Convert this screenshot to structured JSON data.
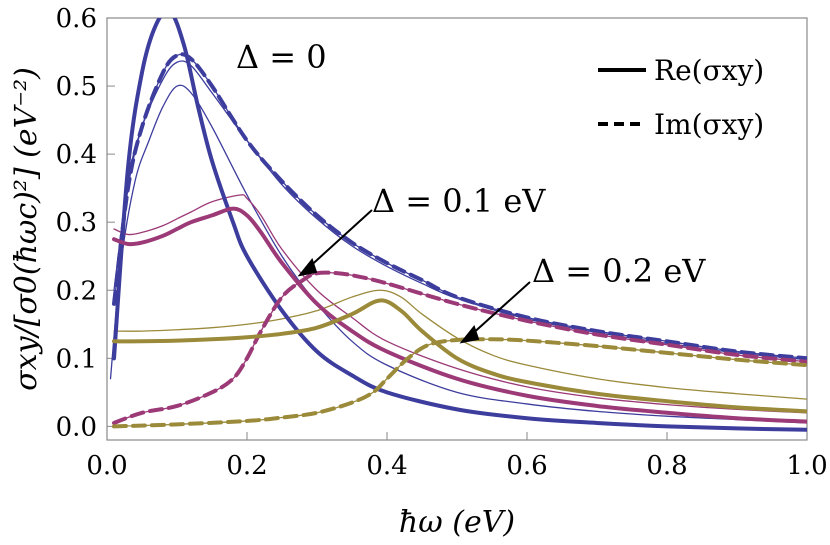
{
  "chart_data": {
    "type": "line",
    "xlabel": "ħω (eV)",
    "ylabel": "σxy/[σ0(ħωc)²] (eV⁻²)",
    "xlim": [
      0,
      1.0
    ],
    "ylim": [
      -0.02,
      0.6
    ],
    "x_ticks": [
      "0.0",
      "0.2",
      "0.4",
      "0.6",
      "0.8",
      "1.0"
    ],
    "y_ticks": [
      "0.0",
      "0.1",
      "0.2",
      "0.3",
      "0.4",
      "0.5",
      "0.6"
    ],
    "legend": [
      {
        "label": "Re(σxy)",
        "style": "solid"
      },
      {
        "label": "Im(σxy)",
        "style": "dashed"
      }
    ],
    "annotations": [
      {
        "text": "Δ = 0"
      },
      {
        "text": "Δ = 0.1 eV"
      },
      {
        "text": "Δ = 0.2 eV"
      }
    ],
    "colors": {
      "delta0": "#3d3d9e",
      "delta01": "#9c3a78",
      "delta02": "#9a8a3a"
    },
    "series": [
      {
        "group": "delta0",
        "kind": "re",
        "width": "thick",
        "x": [
          0.01,
          0.03,
          0.05,
          0.07,
          0.09,
          0.11,
          0.13,
          0.15,
          0.18,
          0.2,
          0.25,
          0.3,
          0.35,
          0.4,
          0.5,
          0.6,
          0.7,
          0.8,
          0.9,
          1.0
        ],
        "y": [
          0.1,
          0.38,
          0.52,
          0.59,
          0.61,
          0.56,
          0.47,
          0.39,
          0.3,
          0.25,
          0.17,
          0.11,
          0.075,
          0.05,
          0.025,
          0.012,
          0.005,
          0.0,
          -0.003,
          -0.005
        ]
      },
      {
        "group": "delta0",
        "kind": "re",
        "width": "thin",
        "x": [
          0.005,
          0.02,
          0.04,
          0.06,
          0.08,
          0.1,
          0.12,
          0.15,
          0.2,
          0.25,
          0.3,
          0.35,
          0.4,
          0.5,
          0.6,
          0.7,
          0.8,
          0.9,
          1.0
        ],
        "y": [
          0.07,
          0.24,
          0.36,
          0.42,
          0.47,
          0.5,
          0.49,
          0.44,
          0.34,
          0.25,
          0.18,
          0.125,
          0.09,
          0.05,
          0.033,
          0.022,
          0.015,
          0.01,
          0.005
        ]
      },
      {
        "group": "delta0",
        "kind": "im",
        "width": "thick",
        "x": [
          0.01,
          0.03,
          0.05,
          0.08,
          0.1,
          0.12,
          0.15,
          0.2,
          0.25,
          0.3,
          0.35,
          0.4,
          0.45,
          0.5,
          0.6,
          0.7,
          0.8,
          0.9,
          1.0
        ],
        "y": [
          0.18,
          0.35,
          0.44,
          0.52,
          0.545,
          0.54,
          0.5,
          0.42,
          0.36,
          0.31,
          0.27,
          0.24,
          0.215,
          0.19,
          0.16,
          0.14,
          0.125,
          0.11,
          0.1
        ]
      },
      {
        "group": "delta0",
        "kind": "im",
        "width": "thin",
        "x": [
          0.01,
          0.03,
          0.05,
          0.08,
          0.1,
          0.12,
          0.15,
          0.2,
          0.25,
          0.3,
          0.35,
          0.4,
          0.45,
          0.5,
          0.6,
          0.7,
          0.8,
          0.9,
          1.0
        ],
        "y": [
          0.2,
          0.36,
          0.44,
          0.51,
          0.535,
          0.53,
          0.49,
          0.42,
          0.355,
          0.305,
          0.265,
          0.235,
          0.21,
          0.188,
          0.158,
          0.138,
          0.122,
          0.108,
          0.098
        ]
      },
      {
        "group": "delta01",
        "kind": "re",
        "width": "thick",
        "x": [
          0.01,
          0.03,
          0.05,
          0.08,
          0.1,
          0.12,
          0.15,
          0.18,
          0.2,
          0.22,
          0.25,
          0.3,
          0.35,
          0.4,
          0.5,
          0.6,
          0.7,
          0.8,
          0.9,
          1.0
        ],
        "y": [
          0.275,
          0.268,
          0.27,
          0.28,
          0.29,
          0.3,
          0.31,
          0.32,
          0.31,
          0.285,
          0.24,
          0.18,
          0.14,
          0.11,
          0.07,
          0.045,
          0.03,
          0.02,
          0.012,
          0.007
        ]
      },
      {
        "group": "delta01",
        "kind": "re",
        "width": "thin",
        "x": [
          0.01,
          0.03,
          0.05,
          0.08,
          0.1,
          0.12,
          0.15,
          0.19,
          0.2,
          0.22,
          0.25,
          0.3,
          0.35,
          0.4,
          0.5,
          0.6,
          0.7,
          0.8,
          0.9,
          1.0
        ],
        "y": [
          0.29,
          0.282,
          0.285,
          0.295,
          0.305,
          0.315,
          0.33,
          0.34,
          0.335,
          0.31,
          0.26,
          0.2,
          0.16,
          0.125,
          0.085,
          0.058,
          0.042,
          0.032,
          0.025,
          0.02
        ]
      },
      {
        "group": "delta01",
        "kind": "im",
        "width": "thick",
        "x": [
          0.01,
          0.05,
          0.1,
          0.15,
          0.18,
          0.2,
          0.22,
          0.25,
          0.28,
          0.3,
          0.33,
          0.36,
          0.4,
          0.5,
          0.6,
          0.7,
          0.8,
          0.9,
          1.0
        ],
        "y": [
          0.005,
          0.02,
          0.03,
          0.05,
          0.07,
          0.1,
          0.14,
          0.19,
          0.215,
          0.225,
          0.225,
          0.22,
          0.21,
          0.18,
          0.155,
          0.135,
          0.12,
          0.105,
          0.095
        ]
      },
      {
        "group": "delta02",
        "kind": "re",
        "width": "thick",
        "x": [
          0.01,
          0.05,
          0.1,
          0.15,
          0.2,
          0.25,
          0.3,
          0.35,
          0.39,
          0.42,
          0.45,
          0.5,
          0.55,
          0.6,
          0.7,
          0.8,
          0.9,
          1.0
        ],
        "y": [
          0.125,
          0.125,
          0.126,
          0.128,
          0.131,
          0.136,
          0.145,
          0.165,
          0.185,
          0.17,
          0.14,
          0.1,
          0.078,
          0.065,
          0.048,
          0.037,
          0.028,
          0.022
        ]
      },
      {
        "group": "delta02",
        "kind": "re",
        "width": "thin",
        "x": [
          0.01,
          0.05,
          0.1,
          0.15,
          0.2,
          0.25,
          0.3,
          0.35,
          0.39,
          0.42,
          0.45,
          0.5,
          0.55,
          0.6,
          0.7,
          0.8,
          0.9,
          1.0
        ],
        "y": [
          0.14,
          0.14,
          0.142,
          0.145,
          0.15,
          0.158,
          0.17,
          0.19,
          0.2,
          0.19,
          0.165,
          0.13,
          0.105,
          0.09,
          0.07,
          0.057,
          0.048,
          0.04
        ]
      },
      {
        "group": "delta02",
        "kind": "im",
        "width": "thick",
        "x": [
          0.01,
          0.1,
          0.2,
          0.25,
          0.3,
          0.35,
          0.38,
          0.4,
          0.43,
          0.46,
          0.5,
          0.55,
          0.6,
          0.7,
          0.8,
          0.9,
          1.0
        ],
        "y": [
          0.0,
          0.003,
          0.008,
          0.013,
          0.02,
          0.035,
          0.05,
          0.07,
          0.1,
          0.12,
          0.127,
          0.128,
          0.126,
          0.118,
          0.108,
          0.098,
          0.09
        ]
      }
    ]
  }
}
